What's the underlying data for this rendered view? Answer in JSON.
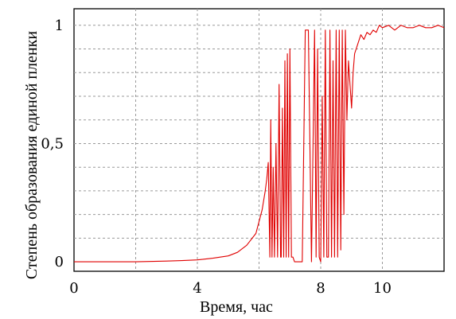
{
  "chart_data": {
    "type": "line",
    "title": "",
    "xlabel": "Время, час",
    "ylabel": "Степень образования единой пленки",
    "xlim": [
      0,
      12
    ],
    "ylim": [
      -0.04,
      1.07
    ],
    "x_ticks": [
      0,
      4,
      8,
      10
    ],
    "x_tick_labels": [
      "0",
      "4",
      "8",
      "10"
    ],
    "y_ticks": [
      0,
      0.5,
      1
    ],
    "y_tick_labels": [
      "0",
      "0,5",
      "1"
    ],
    "x_gridlines": [
      2,
      4,
      6,
      8,
      10
    ],
    "y_gridlines": [
      0.1,
      0.2,
      0.3,
      0.4,
      0.5,
      0.6,
      0.7,
      0.8,
      0.9,
      1.0
    ],
    "grid": true,
    "legend": "none",
    "series": [
      {
        "color": "#e00000",
        "x": [
          0,
          1,
          2,
          3,
          3.5,
          4,
          4.5,
          5,
          5.3,
          5.6,
          5.9,
          6.1,
          6.2,
          6.25,
          6.3,
          6.35,
          6.38,
          6.42,
          6.46,
          6.5,
          6.55,
          6.6,
          6.65,
          6.7,
          6.72,
          6.76,
          6.8,
          6.84,
          6.88,
          6.92,
          6.96,
          7.0,
          7.05,
          7.1,
          7.15,
          7.2,
          7.3,
          7.4,
          7.5,
          7.6,
          7.7,
          7.8,
          7.85,
          7.9,
          7.95,
          8.0,
          8.05,
          8.1,
          8.12,
          8.15,
          8.2,
          8.25,
          8.3,
          8.35,
          8.4,
          8.45,
          8.5,
          8.55,
          8.6,
          8.65,
          8.7,
          8.75,
          8.8,
          8.85,
          8.9,
          8.95,
          9.0,
          9.05,
          9.1,
          9.2,
          9.3,
          9.4,
          9.5,
          9.6,
          9.7,
          9.8,
          9.9,
          10.0,
          10.2,
          10.4,
          10.6,
          10.8,
          11.0,
          11.2,
          11.4,
          11.6,
          11.8,
          12.0
        ],
        "y": [
          0,
          0,
          0,
          0.003,
          0.005,
          0.008,
          0.015,
          0.025,
          0.04,
          0.07,
          0.12,
          0.22,
          0.3,
          0.35,
          0.42,
          0.02,
          0.6,
          0.02,
          0.4,
          0.02,
          0.5,
          0.02,
          0.75,
          0.02,
          0.02,
          0.65,
          0.02,
          0.85,
          0.02,
          0.88,
          0.02,
          0.9,
          0.02,
          0.02,
          0.0,
          0.0,
          0.0,
          0.0,
          0.98,
          0.98,
          0.0,
          0.98,
          0.02,
          0.9,
          0.02,
          0.0,
          0.7,
          0.02,
          0.4,
          0.98,
          0.02,
          0.02,
          0.98,
          0.02,
          0.85,
          0.02,
          0.98,
          0.02,
          0.98,
          0.05,
          0.98,
          0.2,
          0.98,
          0.6,
          0.85,
          0.75,
          0.65,
          0.8,
          0.88,
          0.92,
          0.96,
          0.94,
          0.97,
          0.96,
          0.98,
          0.97,
          1.0,
          0.99,
          1.0,
          0.98,
          1.0,
          0.99,
          0.99,
          1.0,
          0.99,
          0.99,
          1.0,
          0.99
        ]
      }
    ]
  }
}
